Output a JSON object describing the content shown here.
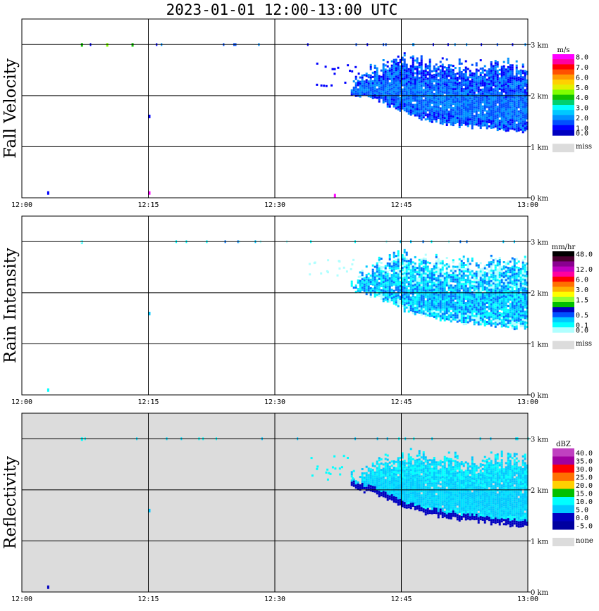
{
  "title": "2023-01-01   12:00-13:00 UTC",
  "time_ticks": [
    "12:00",
    "12:15",
    "12:30",
    "12:45",
    "13:00"
  ],
  "height_ticks": [
    "3 km",
    "2 km",
    "1 km",
    "0 km"
  ],
  "colors": {
    "missing_background": "#dcdcdc",
    "gridline": "#000000"
  },
  "chart_data": [
    {
      "type": "heatmap",
      "title": "Fall Velocity",
      "ylabel": "Fall Velocity",
      "x_range": [
        "12:00",
        "13:00"
      ],
      "y_range_km": [
        0,
        3.5
      ],
      "grid": true,
      "legend": {
        "position": "right",
        "units": "m/s",
        "entries": [
          {
            "label": "8.0",
            "color": "#ff00ff"
          },
          {
            "label": "",
            "color": "#ff00a0"
          },
          {
            "label": "7.0",
            "color": "#ff0000"
          },
          {
            "label": "",
            "color": "#ff5000"
          },
          {
            "label": "6.0",
            "color": "#ff9a00"
          },
          {
            "label": "",
            "color": "#ffd000"
          },
          {
            "label": "5.0",
            "color": "#e2f000"
          },
          {
            "label": "",
            "color": "#80ff00"
          },
          {
            "label": "4.0",
            "color": "#10c000"
          },
          {
            "label": "",
            "color": "#00d070"
          },
          {
            "label": "3.0",
            "color": "#00ffff"
          },
          {
            "label": "",
            "color": "#00c8ff"
          },
          {
            "label": "2.0",
            "color": "#0090ff"
          },
          {
            "label": "",
            "color": "#0050ff"
          },
          {
            "label": "1.0",
            "color": "#0000ff"
          },
          {
            "label": "0.0",
            "color": "#0000c0"
          }
        ],
        "missing_label": "miss",
        "missing_color": "#dcdcdc"
      },
      "echo": {
        "start_time": "12:39",
        "end_time": "13:00",
        "top_km": [
          2.25,
          2.6,
          2.75,
          2.7,
          2.65,
          2.6,
          2.65,
          2.6
        ],
        "base_km": [
          2.05,
          1.95,
          1.7,
          1.55,
          1.45,
          1.4,
          1.35,
          1.3
        ],
        "colors": [
          "#0000ff",
          "#0050ff",
          "#0090ff"
        ]
      },
      "speckles": [
        {
          "time": "12:07",
          "height_km": 3.0,
          "color": "#10c000"
        },
        {
          "time": "12:10",
          "height_km": 3.0,
          "color": "#80ff00"
        },
        {
          "time": "12:13",
          "height_km": 3.0,
          "color": "#10c000"
        },
        {
          "time": "12:15",
          "height_km": 1.6,
          "color": "#0000ff"
        },
        {
          "time": "12:37",
          "height_km": 0.05,
          "color": "#ff00ff"
        },
        {
          "time": "12:15",
          "height_km": 0.1,
          "color": "#ff00ff"
        },
        {
          "time": "12:03",
          "height_km": 0.1,
          "color": "#0000ff"
        }
      ]
    },
    {
      "type": "heatmap",
      "title": "Rain Intensity",
      "ylabel": "Rain Intensity",
      "x_range": [
        "12:00",
        "13:00"
      ],
      "y_range_km": [
        0,
        3.5
      ],
      "grid": true,
      "legend": {
        "position": "right",
        "units": "mm/hr",
        "entries": [
          {
            "label": "48.0",
            "color": "#000000"
          },
          {
            "label": "",
            "color": "#4a0030"
          },
          {
            "label": "",
            "color": "#8a0090"
          },
          {
            "label": "12.0",
            "color": "#c000c0"
          },
          {
            "label": "",
            "color": "#ff00a0"
          },
          {
            "label": "6.0",
            "color": "#ff0000"
          },
          {
            "label": "",
            "color": "#ff7000"
          },
          {
            "label": "3.0",
            "color": "#ffb000"
          },
          {
            "label": "",
            "color": "#ffff00"
          },
          {
            "label": "1.5",
            "color": "#90ff30"
          },
          {
            "label": "",
            "color": "#00c000"
          },
          {
            "label": "",
            "color": "#0000c0"
          },
          {
            "label": "0.5",
            "color": "#0050ff"
          },
          {
            "label": "",
            "color": "#00c8ff"
          },
          {
            "label": "0.1",
            "color": "#00ffff"
          },
          {
            "label": "0.0",
            "color": "#b0ffff"
          }
        ],
        "missing_label": "miss",
        "missing_color": "#dcdcdc"
      },
      "echo": {
        "start_time": "12:39",
        "end_time": "13:00",
        "top_km": [
          2.25,
          2.6,
          2.75,
          2.7,
          2.65,
          2.6,
          2.65,
          2.6
        ],
        "base_km": [
          2.05,
          1.95,
          1.7,
          1.55,
          1.45,
          1.4,
          1.35,
          1.3
        ],
        "colors": [
          "#b0ffff",
          "#00ffff",
          "#00c8ff",
          "#0078ff"
        ]
      },
      "speckles": [
        {
          "time": "12:07",
          "height_km": 3.0,
          "color": "#00ffff"
        },
        {
          "time": "12:15",
          "height_km": 1.6,
          "color": "#00c8ff"
        },
        {
          "time": "12:03",
          "height_km": 0.1,
          "color": "#00ffff"
        }
      ]
    },
    {
      "type": "heatmap",
      "title": "Reflectivity",
      "ylabel": "Reflectivity",
      "x_range": [
        "12:00",
        "13:00"
      ],
      "y_range_km": [
        0,
        3.5
      ],
      "grid": true,
      "legend": {
        "position": "right",
        "units": "dBZ",
        "entries": [
          {
            "label": "40.0",
            "color": "#c040c0"
          },
          {
            "label": "35.0",
            "color": "#a000a0"
          },
          {
            "label": "30.0",
            "color": "#ff0000"
          },
          {
            "label": "25.0",
            "color": "#ff7000"
          },
          {
            "label": "20.0",
            "color": "#ffd000"
          },
          {
            "label": "15.0",
            "color": "#00c000"
          },
          {
            "label": "10.0",
            "color": "#00ffff"
          },
          {
            "label": "5.0",
            "color": "#00c8ff"
          },
          {
            "label": "0.0",
            "color": "#0000c0"
          },
          {
            "label": "-5.0",
            "color": "#0000a0"
          }
        ],
        "missing_label": "none",
        "missing_color": "#dcdcdc"
      },
      "echo": {
        "start_time": "12:39",
        "end_time": "13:00",
        "top_km": [
          2.25,
          2.6,
          2.75,
          2.7,
          2.65,
          2.6,
          2.65,
          2.6
        ],
        "base_km": [
          2.05,
          1.95,
          1.7,
          1.55,
          1.45,
          1.4,
          1.35,
          1.3
        ],
        "colors": [
          "#00ffff",
          "#00c8ff",
          "#00e0ff"
        ],
        "base_color": "#0000c0"
      },
      "speckles": [
        {
          "time": "12:07",
          "height_km": 3.0,
          "color": "#00ffff"
        },
        {
          "time": "12:15",
          "height_km": 1.6,
          "color": "#00c8ff"
        },
        {
          "time": "12:03",
          "height_km": 0.1,
          "color": "#0000c0"
        }
      ]
    }
  ]
}
